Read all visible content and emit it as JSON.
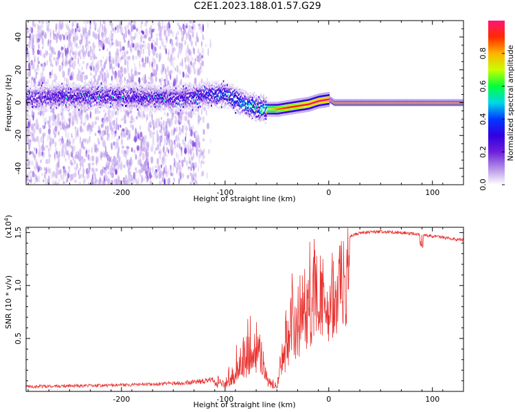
{
  "title": "C2E1.2023.188.01.57.G29",
  "colors": {
    "snr_line": "#e8312e",
    "colormap": [
      "#ffffff",
      "#b38fe8",
      "#6e1fdc",
      "#3200e0",
      "#0038ff",
      "#00d9e6",
      "#00ff3a",
      "#c8ff00",
      "#ffb300",
      "#ff2a00",
      "#ff1478"
    ]
  },
  "chart_data": [
    {
      "type": "heatmap",
      "title": "C2E1.2023.188.01.57.G29",
      "xlabel": "Height of straight line (km)",
      "ylabel": "Frequency (Hz)",
      "xlim": [
        -292,
        130
      ],
      "ylim": [
        -50,
        50
      ],
      "x_ticks": [
        -200,
        -100,
        0,
        100
      ],
      "x_tick_labels": [
        "-200",
        "-100",
        "0",
        "100"
      ],
      "y_ticks": [
        -40,
        -20,
        0,
        20,
        40
      ],
      "y_tick_labels": [
        "-40",
        "-20",
        "0",
        "20",
        "40"
      ],
      "colorbar": {
        "label": "Normalized spectral amplitude",
        "range": [
          0,
          1
        ],
        "ticks": [
          0.0,
          0.2,
          0.4,
          0.6,
          0.8
        ],
        "tick_labels": [
          "0.0",
          "0.2",
          "0.4",
          "0.6",
          "0.8"
        ]
      },
      "ridge": {
        "x": [
          -292,
          -260,
          -230,
          -200,
          -170,
          -140,
          -120,
          -100,
          -90,
          -80,
          -70,
          -60,
          -50,
          -40,
          -30,
          -20,
          -10,
          0,
          5,
          130
        ],
        "freq": [
          3,
          4,
          4,
          4,
          3,
          3,
          5,
          5,
          2,
          -1,
          -3,
          -4,
          -4,
          -3,
          -2,
          -1,
          1,
          2,
          0,
          0
        ],
        "amplitude": [
          0.25,
          0.3,
          0.3,
          0.3,
          0.3,
          0.3,
          0.35,
          0.4,
          0.45,
          0.5,
          0.55,
          0.7,
          0.85,
          0.9,
          0.9,
          0.95,
          1.0,
          1.0,
          1.0,
          1.0
        ]
      },
      "noise_extent_x": [
        -292,
        -112
      ]
    },
    {
      "type": "line",
      "xlabel": "Height of straight line (km)",
      "ylabel": "SNR (10 * v/v)",
      "y_scale_label": "(x10^4)",
      "xlim": [
        -292,
        130
      ],
      "ylim": [
        0,
        15500
      ],
      "x_ticks": [
        -200,
        -100,
        0,
        100
      ],
      "x_tick_labels": [
        "-200",
        "-100",
        "0",
        "100"
      ],
      "y_ticks": [
        5000,
        10000,
        15000
      ],
      "y_tick_labels": [
        "0.5",
        "1.0",
        "1.5"
      ],
      "series": [
        {
          "x": [
            -292,
            -260,
            -220,
            -180,
            -140,
            -110,
            -95,
            -85,
            -75,
            -68,
            -62,
            -58,
            -50,
            -45,
            -40,
            -35,
            -30,
            -25,
            -20,
            -15,
            -10,
            -5,
            0,
            5,
            10,
            15,
            20,
            25,
            30,
            40,
            50,
            60,
            70,
            80,
            90,
            100,
            110,
            120,
            130
          ],
          "values": [
            300,
            350,
            400,
            500,
            600,
            800,
            1000,
            2500,
            3500,
            4500,
            3000,
            800,
            500,
            3500,
            5000,
            6500,
            8000,
            7000,
            9000,
            11000,
            12000,
            11500,
            9000,
            12000,
            13500,
            14200,
            14600,
            14800,
            14950,
            15050,
            15100,
            15050,
            15000,
            14900,
            14800,
            14650,
            14550,
            14400,
            14300
          ],
          "envelope_max": [
            600,
            650,
            700,
            800,
            1000,
            1400,
            2500,
            6000,
            7800,
            7000,
            6000,
            2000,
            1500,
            6000,
            11000,
            12500,
            13000,
            13500,
            14000,
            14800,
            15200,
            14000,
            12000,
            14000,
            14600,
            14900,
            15000,
            15100,
            15150,
            15200,
            15200,
            15150,
            15100,
            15050,
            14950,
            14800,
            14700,
            14550,
            14400
          ]
        }
      ]
    }
  ]
}
